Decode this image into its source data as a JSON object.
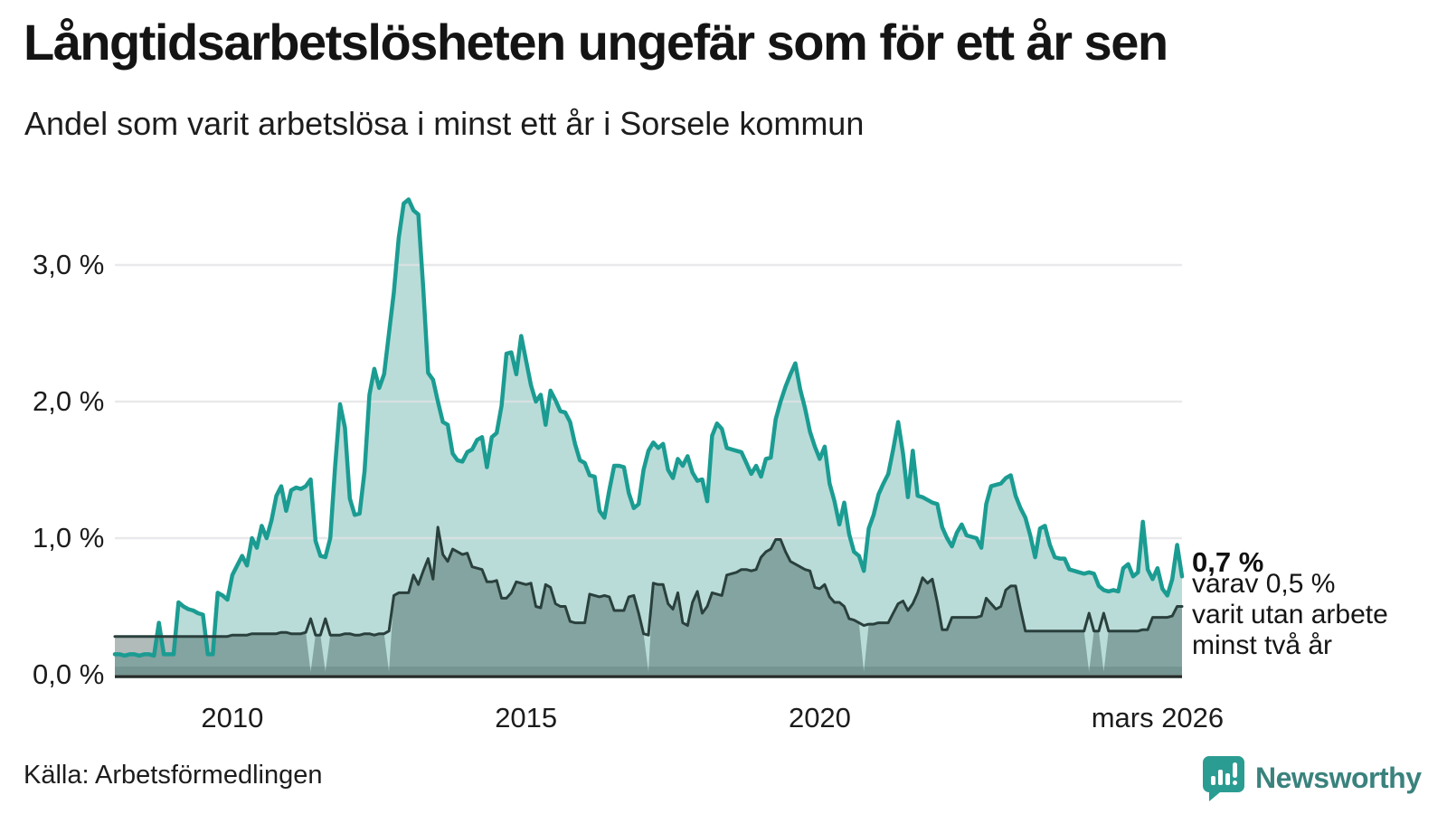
{
  "header": {
    "title": "Långtidsarbetslösheten ungefär som för ett år sen",
    "subtitle": "Andel som varit arbetslösa i minst ett år i Sorsele kommun"
  },
  "annotation": {
    "value_label": "0,7 %",
    "lines": [
      "varav 0,5 %",
      "varit utan arbete",
      "minst två år"
    ]
  },
  "footer": {
    "source": "Källa: Arbetsförmedlingen",
    "brand": "Newsworthy",
    "brand_icon": "newsworthy-speech-bubble-chart-icon"
  },
  "colors": {
    "accent_teal_line": "#1b9c92",
    "teal_fill": "#b9dcd8",
    "dark_line": "#2a403d",
    "dark_fill": "rgba(31,61,58,0.35)",
    "gridline": "#e2e2e6",
    "axis_line": "#222b28",
    "brand_teal": "#2b9c92"
  },
  "chart_data": {
    "type": "area",
    "title": "Långtidsarbetslösheten ungefär som för ett år sen",
    "subtitle": "Andel som varit arbetslösa i minst ett år i Sorsele kommun",
    "unit": "%",
    "x_start": "2008-01",
    "x_end": "2026-03",
    "frequency": "monthly",
    "ylim": [
      0,
      3.6
    ],
    "grid": "horizontal",
    "y_ticks": [
      {
        "label": "0,0 %",
        "value": 0.0
      },
      {
        "label": "1,0 %",
        "value": 1.0
      },
      {
        "label": "2,0 %",
        "value": 2.0
      },
      {
        "label": "3,0 %",
        "value": 3.0
      }
    ],
    "x_ticks": [
      {
        "label": "2010",
        "month_index": 24
      },
      {
        "label": "2015",
        "month_index": 84
      },
      {
        "label": "2020",
        "month_index": 144
      },
      {
        "label": "mars 2026",
        "month_index": 213
      }
    ],
    "end_values": {
      "one_year": "0,7 %",
      "two_years": "0,5 %"
    },
    "series": [
      {
        "name": "Arbetslösa minst ett år",
        "values": [
          0.15,
          0.15,
          0.14,
          0.15,
          0.15,
          0.14,
          0.15,
          0.15,
          0.14,
          0.38,
          0.15,
          0.15,
          0.15,
          0.53,
          0.5,
          0.48,
          0.47,
          0.45,
          0.44,
          0.15,
          0.15,
          0.6,
          0.58,
          0.55,
          0.73,
          0.8,
          0.87,
          0.8,
          1.0,
          0.93,
          1.09,
          1.0,
          1.13,
          1.31,
          1.38,
          1.2,
          1.35,
          1.37,
          1.36,
          1.38,
          1.43,
          0.98,
          0.87,
          0.86,
          1.0,
          1.53,
          1.98,
          1.81,
          1.29,
          1.17,
          1.18,
          1.49,
          2.05,
          2.24,
          2.1,
          2.2,
          2.5,
          2.8,
          3.2,
          3.45,
          3.48,
          3.4,
          3.37,
          2.83,
          2.21,
          2.16,
          2.0,
          1.85,
          1.83,
          1.62,
          1.57,
          1.56,
          1.63,
          1.65,
          1.72,
          1.74,
          1.52,
          1.74,
          1.77,
          1.97,
          2.35,
          2.36,
          2.2,
          2.48,
          2.3,
          2.12,
          2.0,
          2.05,
          1.83,
          2.08,
          2.01,
          1.93,
          1.92,
          1.85,
          1.69,
          1.57,
          1.55,
          1.46,
          1.45,
          1.2,
          1.15,
          1.35,
          1.53,
          1.53,
          1.52,
          1.33,
          1.22,
          1.25,
          1.5,
          1.64,
          1.7,
          1.66,
          1.69,
          1.5,
          1.44,
          1.58,
          1.53,
          1.6,
          1.48,
          1.42,
          1.43,
          1.27,
          1.75,
          1.84,
          1.8,
          1.66,
          1.65,
          1.64,
          1.63,
          1.55,
          1.47,
          1.53,
          1.45,
          1.58,
          1.59,
          1.87,
          2.0,
          2.11,
          2.2,
          2.28,
          2.09,
          1.95,
          1.78,
          1.67,
          1.58,
          1.67,
          1.4,
          1.27,
          1.1,
          1.26,
          1.03,
          0.9,
          0.87,
          0.76,
          1.07,
          1.17,
          1.32,
          1.4,
          1.47,
          1.65,
          1.85,
          1.62,
          1.3,
          1.64,
          1.31,
          1.3,
          1.28,
          1.26,
          1.25,
          1.08,
          1.0,
          0.94,
          1.04,
          1.1,
          1.02,
          1.01,
          1.0,
          0.93,
          1.25,
          1.38,
          1.39,
          1.4,
          1.44,
          1.46,
          1.31,
          1.22,
          1.15,
          1.02,
          0.86,
          1.07,
          1.09,
          0.95,
          0.86,
          0.85,
          0.85,
          0.77,
          0.76,
          0.75,
          0.74,
          0.75,
          0.74,
          0.65,
          0.62,
          0.61,
          0.62,
          0.61,
          0.78,
          0.81,
          0.72,
          0.75,
          1.12,
          0.77,
          0.7,
          0.78,
          0.63,
          0.58,
          0.7,
          0.95,
          0.72
        ]
      },
      {
        "name": "Varav utan arbete minst två år",
        "fill_gap_indices": [
          40,
          43,
          56,
          109,
          153,
          199,
          202
        ],
        "values": [
          0.28,
          0.28,
          0.28,
          0.28,
          0.28,
          0.28,
          0.28,
          0.28,
          0.28,
          0.28,
          0.28,
          0.28,
          0.28,
          0.28,
          0.28,
          0.28,
          0.28,
          0.28,
          0.28,
          0.28,
          0.28,
          0.28,
          0.28,
          0.28,
          0.29,
          0.29,
          0.29,
          0.29,
          0.3,
          0.3,
          0.3,
          0.3,
          0.3,
          0.3,
          0.31,
          0.31,
          0.3,
          0.3,
          0.3,
          0.31,
          0.41,
          0.29,
          0.29,
          0.41,
          0.29,
          0.29,
          0.29,
          0.3,
          0.3,
          0.29,
          0.29,
          0.3,
          0.3,
          0.29,
          0.3,
          0.3,
          0.32,
          0.58,
          0.6,
          0.6,
          0.6,
          0.73,
          0.66,
          0.76,
          0.85,
          0.7,
          1.08,
          0.88,
          0.83,
          0.92,
          0.9,
          0.88,
          0.89,
          0.79,
          0.78,
          0.77,
          0.68,
          0.68,
          0.69,
          0.56,
          0.56,
          0.6,
          0.68,
          0.67,
          0.66,
          0.67,
          0.5,
          0.49,
          0.66,
          0.64,
          0.52,
          0.5,
          0.5,
          0.39,
          0.38,
          0.38,
          0.38,
          0.59,
          0.58,
          0.57,
          0.58,
          0.57,
          0.47,
          0.47,
          0.47,
          0.57,
          0.58,
          0.45,
          0.3,
          0.29,
          0.67,
          0.66,
          0.66,
          0.52,
          0.48,
          0.6,
          0.38,
          0.36,
          0.53,
          0.61,
          0.45,
          0.5,
          0.6,
          0.59,
          0.58,
          0.73,
          0.74,
          0.75,
          0.77,
          0.77,
          0.76,
          0.77,
          0.86,
          0.9,
          0.92,
          0.99,
          0.99,
          0.9,
          0.83,
          0.81,
          0.79,
          0.77,
          0.76,
          0.64,
          0.63,
          0.66,
          0.57,
          0.53,
          0.53,
          0.5,
          0.41,
          0.4,
          0.38,
          0.36,
          0.37,
          0.37,
          0.38,
          0.38,
          0.38,
          0.45,
          0.52,
          0.54,
          0.47,
          0.52,
          0.6,
          0.71,
          0.67,
          0.7,
          0.53,
          0.33,
          0.33,
          0.42,
          0.42,
          0.42,
          0.42,
          0.42,
          0.42,
          0.43,
          0.56,
          0.52,
          0.48,
          0.5,
          0.62,
          0.65,
          0.65,
          0.48,
          0.32,
          0.32,
          0.32,
          0.32,
          0.32,
          0.32,
          0.32,
          0.32,
          0.32,
          0.32,
          0.32,
          0.32,
          0.32,
          0.45,
          0.32,
          0.32,
          0.45,
          0.32,
          0.32,
          0.32,
          0.32,
          0.32,
          0.32,
          0.32,
          0.33,
          0.33,
          0.42,
          0.42,
          0.42,
          0.42,
          0.43,
          0.5,
          0.5
        ]
      }
    ]
  }
}
